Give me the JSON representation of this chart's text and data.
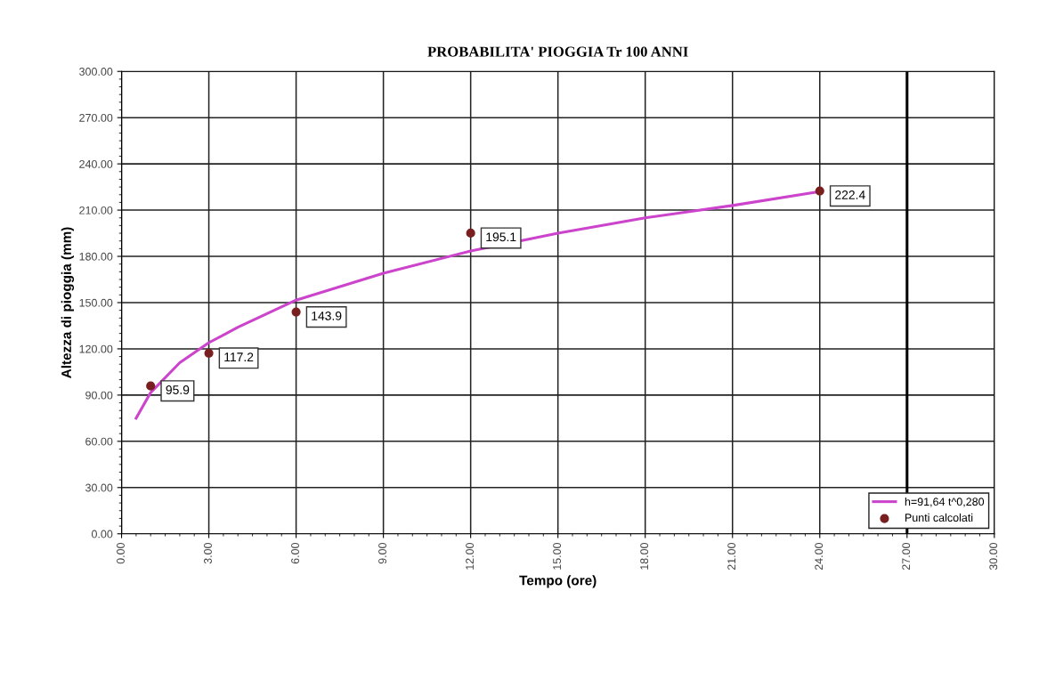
{
  "chart_data": {
    "type": "line",
    "title": "PROBABILITA' PIOGGIA Tr 100 ANNI",
    "xlabel": "Tempo (ore)",
    "ylabel": "Altezza di pioggia (mm)",
    "series": [
      {
        "name": "h=91,64 t^0,280",
        "color": "#cc44cc",
        "x": [
          0.5,
          1,
          2,
          3,
          4,
          6,
          9,
          12,
          15,
          18,
          21,
          24
        ],
        "values": [
          75,
          91.6,
          111,
          124,
          134,
          151.6,
          169,
          183.5,
          195,
          205,
          213,
          222
        ]
      },
      {
        "name": "Punti calcolati",
        "type": "scatter",
        "color": "#7a1f1f",
        "marker": "circle",
        "x": [
          1,
          3,
          6,
          12,
          24
        ],
        "values": [
          95.9,
          117.2,
          143.9,
          195.1,
          222.4
        ],
        "value_labels": [
          "95.9",
          "117.2",
          "143.9",
          "195.1",
          "222.4"
        ]
      }
    ],
    "xlim": [
      0,
      30
    ],
    "ylim": [
      0,
      300
    ],
    "xticks": [
      {
        "value": 0,
        "label": "0.00"
      },
      {
        "value": 3,
        "label": "3.00"
      },
      {
        "value": 6,
        "label": "6.00"
      },
      {
        "value": 9,
        "label": "9.00"
      },
      {
        "value": 12,
        "label": "12.00"
      },
      {
        "value": 15,
        "label": "15.00"
      },
      {
        "value": 18,
        "label": "18.00"
      },
      {
        "value": 21,
        "label": "21.00"
      },
      {
        "value": 24,
        "label": "24.00"
      },
      {
        "value": 27,
        "label": "27.00"
      },
      {
        "value": 30,
        "label": "30.00"
      }
    ],
    "yticks": [
      {
        "value": 0,
        "label": "0.00"
      },
      {
        "value": 30,
        "label": "30.00"
      },
      {
        "value": 60,
        "label": "60.00"
      },
      {
        "value": 90,
        "label": "90.00"
      },
      {
        "value": 120,
        "label": "120.00"
      },
      {
        "value": 150,
        "label": "150.00"
      },
      {
        "value": 180,
        "label": "180.00"
      },
      {
        "value": 210,
        "label": "210.00"
      },
      {
        "value": 240,
        "label": "240.00"
      },
      {
        "value": 270,
        "label": "270.00"
      },
      {
        "value": 300,
        "label": "300.00"
      }
    ],
    "ref_lines": [
      {
        "axis": "x",
        "value": 27,
        "color": "#000000"
      }
    ],
    "grid": true,
    "legend": "bottom right"
  }
}
